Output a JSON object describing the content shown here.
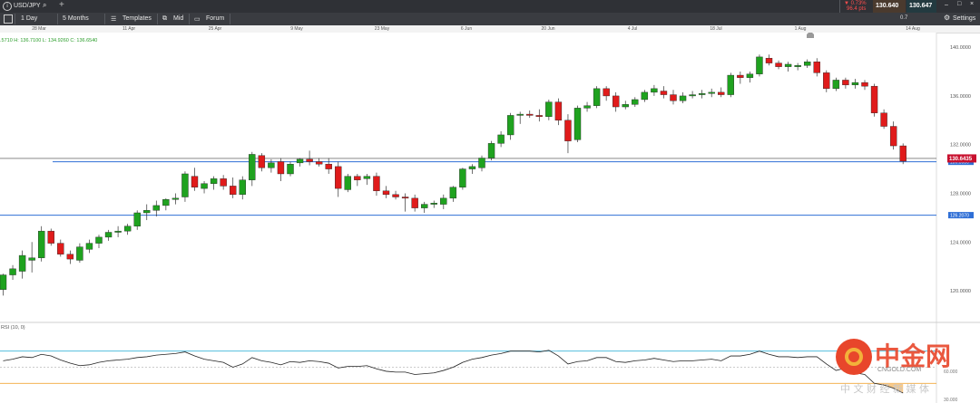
{
  "toolbar": {
    "symbol": "USD/JPY",
    "timeframe": "1 Day",
    "range": "5 Months",
    "templates": "Templates",
    "mid": "Mid",
    "forum": "Forum",
    "change_pct": "▼ 0.73%",
    "change_pts": "96.4 pts",
    "bid": "130.640",
    "ask": "130.647",
    "spread": "0.7",
    "settings": "Settings"
  },
  "ohlc": {
    "open_fragment": ".5710",
    "high": "H: 136.7100",
    "low": "L: 134.9260",
    "close": "C: 136.6540"
  },
  "price_badge": "130.6435",
  "level_labels": [
    "130.5930",
    "126.2070"
  ],
  "rsi_label": "RSI (10, 0)",
  "rsi_ticks": [
    "60.000",
    "30.000"
  ],
  "watermark": {
    "cn": "中金网",
    "url": "CNGOLD.COM",
    "tagline": "中 文 财 经 新 媒 体"
  },
  "chart_data": {
    "type": "candlestick",
    "instrument": "USD/JPY",
    "interval": "1 Day",
    "x_ticks": [
      "28 Mar",
      "11 Apr",
      "25 Apr",
      "9 May",
      "23 May",
      "6 Jun",
      "20 Jun",
      "4 Jul",
      "18 Jul",
      "1 Aug",
      "14 Aug"
    ],
    "y_ticks": [
      "140.0000",
      "136.0000",
      "132.0000",
      "128.0000",
      "124.0000",
      "120.0000"
    ],
    "ylim": [
      117.4,
      141.2
    ],
    "horizontal_levels": [
      130.59,
      126.207
    ],
    "current_price": 130.6435,
    "candles": [
      {
        "o": 120.1,
        "h": 121.4,
        "l": 119.6,
        "c": 121.3
      },
      {
        "o": 121.3,
        "h": 122.1,
        "l": 120.9,
        "c": 121.8
      },
      {
        "o": 121.6,
        "h": 123.3,
        "l": 121.0,
        "c": 122.9
      },
      {
        "o": 122.5,
        "h": 124.0,
        "l": 121.5,
        "c": 122.7
      },
      {
        "o": 122.7,
        "h": 125.3,
        "l": 122.4,
        "c": 124.9
      },
      {
        "o": 124.9,
        "h": 125.1,
        "l": 123.7,
        "c": 123.9
      },
      {
        "o": 123.9,
        "h": 124.2,
        "l": 122.8,
        "c": 123.0
      },
      {
        "o": 123.0,
        "h": 123.3,
        "l": 122.2,
        "c": 122.6
      },
      {
        "o": 122.5,
        "h": 123.9,
        "l": 122.3,
        "c": 123.6
      },
      {
        "o": 123.4,
        "h": 124.2,
        "l": 123.1,
        "c": 123.9
      },
      {
        "o": 123.9,
        "h": 124.6,
        "l": 123.5,
        "c": 124.4
      },
      {
        "o": 124.4,
        "h": 125.0,
        "l": 124.1,
        "c": 124.8
      },
      {
        "o": 124.8,
        "h": 125.3,
        "l": 124.4,
        "c": 124.9
      },
      {
        "o": 124.9,
        "h": 125.5,
        "l": 124.6,
        "c": 125.3
      },
      {
        "o": 125.3,
        "h": 126.6,
        "l": 125.0,
        "c": 126.4
      },
      {
        "o": 126.4,
        "h": 127.1,
        "l": 125.8,
        "c": 126.6
      },
      {
        "o": 126.6,
        "h": 127.4,
        "l": 126.1,
        "c": 127.0
      },
      {
        "o": 127.0,
        "h": 127.6,
        "l": 126.6,
        "c": 127.5
      },
      {
        "o": 127.5,
        "h": 128.0,
        "l": 127.1,
        "c": 127.6
      },
      {
        "o": 127.7,
        "h": 129.8,
        "l": 127.3,
        "c": 129.6
      },
      {
        "o": 129.4,
        "h": 130.1,
        "l": 128.2,
        "c": 128.5
      },
      {
        "o": 128.4,
        "h": 129.0,
        "l": 128.0,
        "c": 128.8
      },
      {
        "o": 128.8,
        "h": 129.4,
        "l": 128.3,
        "c": 129.2
      },
      {
        "o": 129.2,
        "h": 129.5,
        "l": 128.3,
        "c": 128.6
      },
      {
        "o": 128.6,
        "h": 129.3,
        "l": 127.6,
        "c": 127.9
      },
      {
        "o": 127.9,
        "h": 129.4,
        "l": 127.5,
        "c": 129.1
      },
      {
        "o": 129.1,
        "h": 131.4,
        "l": 128.6,
        "c": 131.2
      },
      {
        "o": 131.1,
        "h": 131.3,
        "l": 129.8,
        "c": 130.1
      },
      {
        "o": 130.1,
        "h": 130.8,
        "l": 129.7,
        "c": 130.5
      },
      {
        "o": 130.6,
        "h": 130.9,
        "l": 129.0,
        "c": 129.6
      },
      {
        "o": 129.6,
        "h": 130.6,
        "l": 129.4,
        "c": 130.4
      },
      {
        "o": 130.5,
        "h": 130.9,
        "l": 130.2,
        "c": 130.8
      },
      {
        "o": 130.8,
        "h": 131.5,
        "l": 130.3,
        "c": 130.6
      },
      {
        "o": 130.6,
        "h": 130.9,
        "l": 130.2,
        "c": 130.4
      },
      {
        "o": 130.4,
        "h": 130.9,
        "l": 129.6,
        "c": 130.0
      },
      {
        "o": 130.2,
        "h": 130.6,
        "l": 127.7,
        "c": 128.4
      },
      {
        "o": 128.3,
        "h": 129.6,
        "l": 128.1,
        "c": 129.4
      },
      {
        "o": 129.4,
        "h": 129.6,
        "l": 128.6,
        "c": 129.1
      },
      {
        "o": 129.2,
        "h": 129.6,
        "l": 128.7,
        "c": 129.4
      },
      {
        "o": 129.4,
        "h": 129.7,
        "l": 127.8,
        "c": 128.2
      },
      {
        "o": 128.2,
        "h": 128.6,
        "l": 127.6,
        "c": 127.9
      },
      {
        "o": 127.9,
        "h": 128.2,
        "l": 127.5,
        "c": 127.7
      },
      {
        "o": 127.7,
        "h": 128.0,
        "l": 126.5,
        "c": 127.6
      },
      {
        "o": 127.6,
        "h": 127.9,
        "l": 126.5,
        "c": 126.8
      },
      {
        "o": 126.8,
        "h": 127.3,
        "l": 126.4,
        "c": 127.1
      },
      {
        "o": 127.1,
        "h": 127.4,
        "l": 126.8,
        "c": 127.2
      },
      {
        "o": 127.1,
        "h": 127.9,
        "l": 126.7,
        "c": 127.6
      },
      {
        "o": 127.6,
        "h": 128.6,
        "l": 127.3,
        "c": 128.5
      },
      {
        "o": 128.5,
        "h": 130.1,
        "l": 128.3,
        "c": 130.0
      },
      {
        "o": 130.0,
        "h": 130.4,
        "l": 129.6,
        "c": 130.2
      },
      {
        "o": 130.1,
        "h": 131.1,
        "l": 129.8,
        "c": 130.9
      },
      {
        "o": 130.9,
        "h": 132.3,
        "l": 130.7,
        "c": 132.1
      },
      {
        "o": 132.1,
        "h": 133.1,
        "l": 131.8,
        "c": 132.8
      },
      {
        "o": 132.8,
        "h": 134.6,
        "l": 132.4,
        "c": 134.4
      },
      {
        "o": 134.4,
        "h": 134.7,
        "l": 133.7,
        "c": 134.5
      },
      {
        "o": 134.5,
        "h": 134.8,
        "l": 134.2,
        "c": 134.4
      },
      {
        "o": 134.4,
        "h": 134.9,
        "l": 133.9,
        "c": 134.3
      },
      {
        "o": 134.3,
        "h": 135.7,
        "l": 134.0,
        "c": 135.5
      },
      {
        "o": 135.5,
        "h": 135.8,
        "l": 133.6,
        "c": 134.0
      },
      {
        "o": 134.0,
        "h": 134.5,
        "l": 131.3,
        "c": 132.3
      },
      {
        "o": 132.4,
        "h": 135.2,
        "l": 132.2,
        "c": 135.0
      },
      {
        "o": 135.0,
        "h": 135.5,
        "l": 134.7,
        "c": 135.2
      },
      {
        "o": 135.2,
        "h": 136.8,
        "l": 135.0,
        "c": 136.6
      },
      {
        "o": 136.6,
        "h": 136.8,
        "l": 135.6,
        "c": 136.0
      },
      {
        "o": 136.0,
        "h": 136.3,
        "l": 134.7,
        "c": 135.1
      },
      {
        "o": 135.1,
        "h": 135.6,
        "l": 134.9,
        "c": 135.3
      },
      {
        "o": 135.3,
        "h": 135.9,
        "l": 135.1,
        "c": 135.7
      },
      {
        "o": 135.7,
        "h": 136.5,
        "l": 135.5,
        "c": 136.3
      },
      {
        "o": 136.3,
        "h": 136.9,
        "l": 136.0,
        "c": 136.6
      },
      {
        "o": 136.4,
        "h": 136.8,
        "l": 135.8,
        "c": 136.1
      },
      {
        "o": 136.1,
        "h": 136.5,
        "l": 135.3,
        "c": 135.6
      },
      {
        "o": 135.6,
        "h": 136.3,
        "l": 135.4,
        "c": 136.0
      },
      {
        "o": 136.0,
        "h": 136.4,
        "l": 135.8,
        "c": 136.1
      },
      {
        "o": 136.1,
        "h": 136.5,
        "l": 135.8,
        "c": 136.2
      },
      {
        "o": 136.2,
        "h": 136.6,
        "l": 135.9,
        "c": 136.3
      },
      {
        "o": 136.3,
        "h": 136.7,
        "l": 135.9,
        "c": 136.1
      },
      {
        "o": 136.1,
        "h": 137.9,
        "l": 135.9,
        "c": 137.7
      },
      {
        "o": 137.7,
        "h": 138.0,
        "l": 137.0,
        "c": 137.5
      },
      {
        "o": 137.5,
        "h": 138.0,
        "l": 137.1,
        "c": 137.8
      },
      {
        "o": 137.8,
        "h": 139.4,
        "l": 137.6,
        "c": 139.2
      },
      {
        "o": 139.1,
        "h": 139.4,
        "l": 138.5,
        "c": 138.7
      },
      {
        "o": 138.7,
        "h": 138.9,
        "l": 138.2,
        "c": 138.4
      },
      {
        "o": 138.4,
        "h": 138.8,
        "l": 138.0,
        "c": 138.6
      },
      {
        "o": 138.4,
        "h": 138.7,
        "l": 138.1,
        "c": 138.5
      },
      {
        "o": 138.5,
        "h": 139.0,
        "l": 138.3,
        "c": 138.8
      },
      {
        "o": 138.8,
        "h": 139.1,
        "l": 137.6,
        "c": 137.9
      },
      {
        "o": 137.9,
        "h": 138.1,
        "l": 136.3,
        "c": 136.6
      },
      {
        "o": 136.6,
        "h": 137.5,
        "l": 136.4,
        "c": 137.3
      },
      {
        "o": 137.3,
        "h": 137.5,
        "l": 136.6,
        "c": 136.9
      },
      {
        "o": 136.9,
        "h": 137.4,
        "l": 136.6,
        "c": 137.1
      },
      {
        "o": 137.1,
        "h": 137.3,
        "l": 136.5,
        "c": 136.8
      },
      {
        "o": 136.8,
        "h": 137.0,
        "l": 134.3,
        "c": 134.6
      },
      {
        "o": 134.6,
        "h": 134.9,
        "l": 133.3,
        "c": 133.5
      },
      {
        "o": 133.5,
        "h": 133.9,
        "l": 131.6,
        "c": 131.9
      },
      {
        "o": 131.9,
        "h": 132.1,
        "l": 130.4,
        "c": 130.64
      }
    ],
    "rsi": {
      "label": "RSI (10, 0)",
      "levels": [
        70,
        50,
        30
      ],
      "ylim": [
        0,
        100
      ],
      "values": [
        58,
        60,
        63,
        62,
        66,
        64,
        59,
        55,
        52,
        53,
        56,
        58,
        59,
        60,
        62,
        63,
        65,
        66,
        67,
        69,
        64,
        60,
        58,
        56,
        50,
        54,
        62,
        58,
        56,
        53,
        57,
        56,
        58,
        57,
        55,
        49,
        51,
        51,
        52,
        48,
        45,
        44,
        44,
        41,
        42,
        43,
        46,
        50,
        56,
        60,
        62,
        65,
        67,
        70,
        70,
        70,
        69,
        71,
        64,
        54,
        57,
        58,
        62,
        62,
        57,
        56,
        58,
        59,
        61,
        59,
        57,
        58,
        58,
        59,
        60,
        58,
        64,
        64,
        66,
        70,
        66,
        63,
        63,
        62,
        63,
        63,
        54,
        46,
        49,
        43,
        41,
        30,
        28,
        24,
        18
      ]
    }
  }
}
